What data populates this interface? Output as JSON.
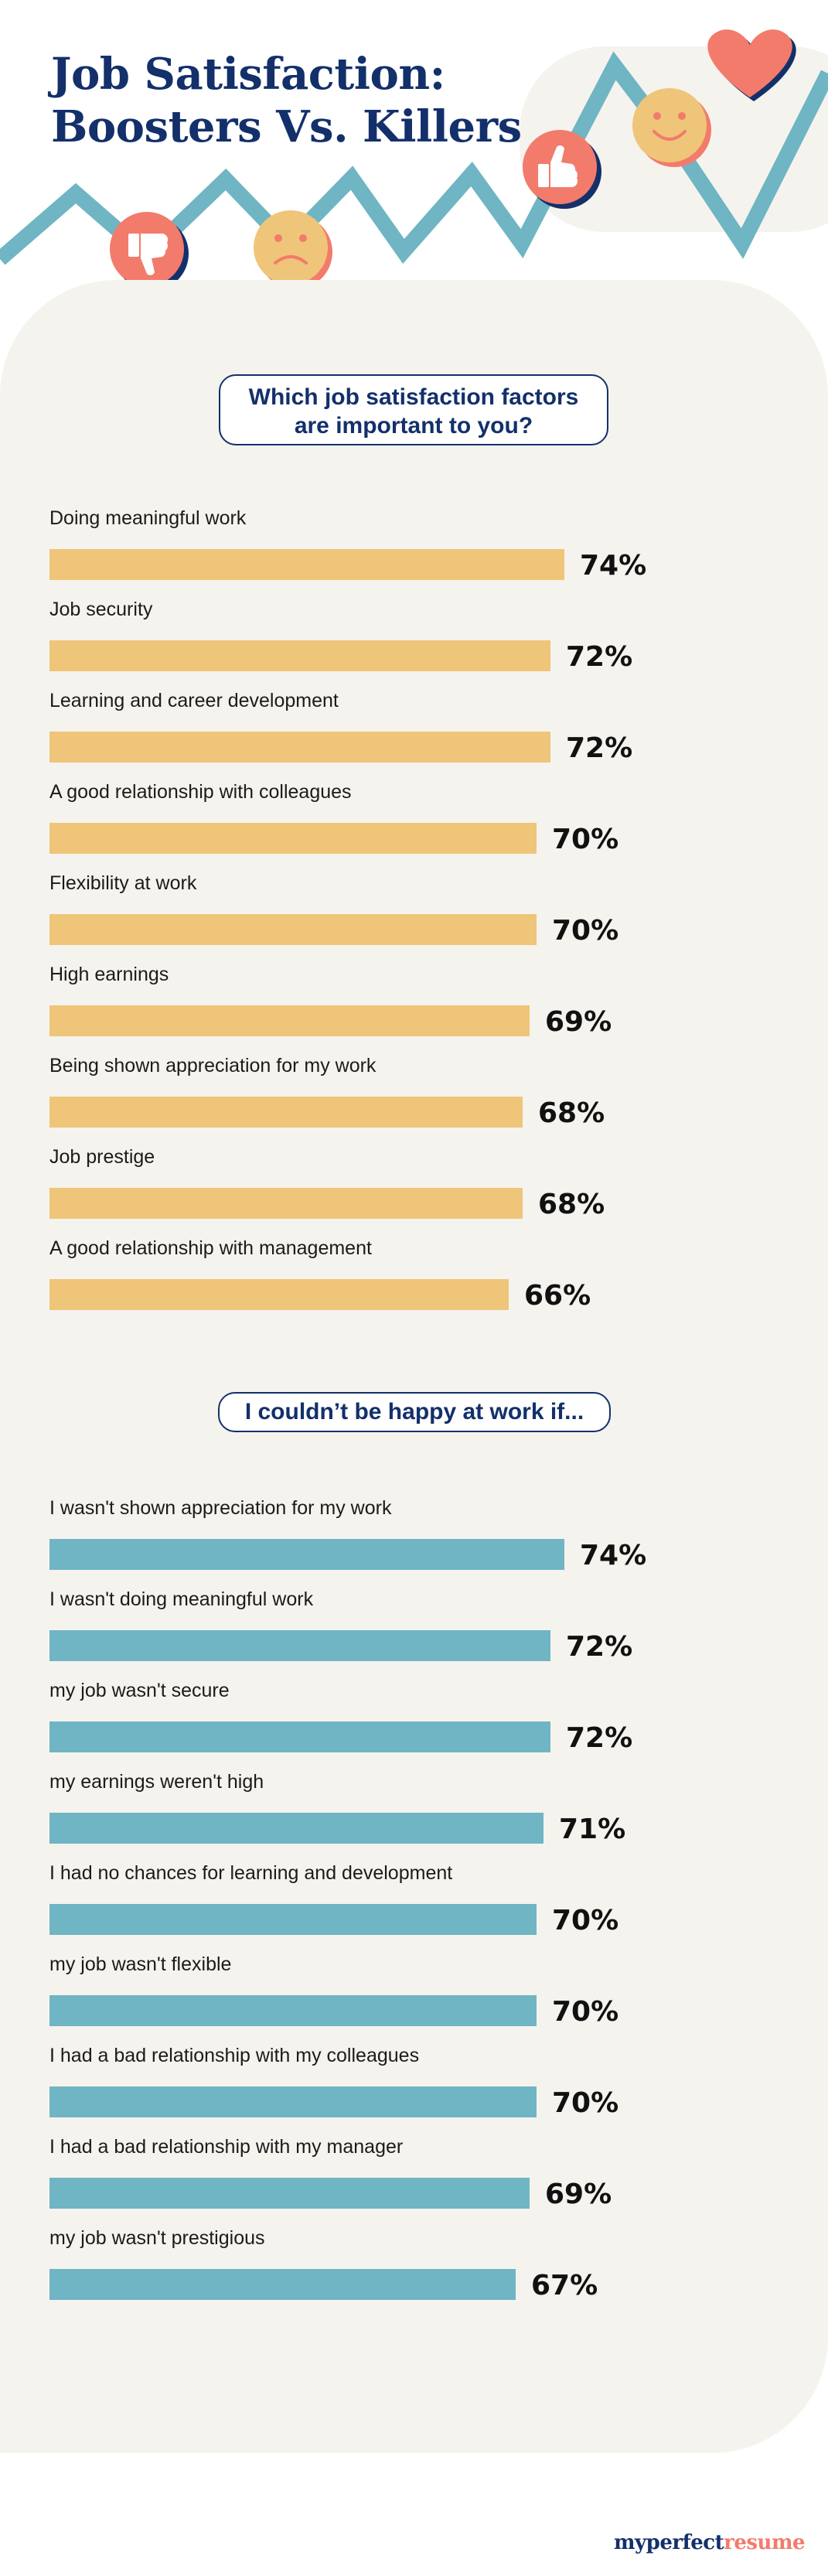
{
  "header": {
    "title_line1": "Job Satisfaction:",
    "title_line2": "Boosters Vs. Killers"
  },
  "colors": {
    "navy": "#13306b",
    "boosters_bar": "#efc579",
    "killers_bar": "#6fb5c3",
    "coral": "#f27b6b",
    "panel_bg": "#f5f3ee"
  },
  "sections": {
    "boosters_question_line1": "Which job satisfaction factors",
    "boosters_question_line2": "are important to you?",
    "killers_question": "I couldn’t be happy at work if..."
  },
  "chart_data": [
    {
      "type": "bar",
      "orientation": "horizontal",
      "title": "Which job satisfaction factors are important to you?",
      "categories": [
        "Doing meaningful work",
        "Job security",
        "Learning and career development",
        "A good relationship with colleagues",
        "Flexibility at work",
        "High earnings",
        "Being shown appreciation for my work",
        "Job prestige",
        "A good relationship with management"
      ],
      "values": [
        74,
        72,
        72,
        70,
        70,
        69,
        68,
        68,
        66
      ],
      "value_labels": [
        "74%",
        "72%",
        "72%",
        "70%",
        "70%",
        "69%",
        "68%",
        "68%",
        "66%"
      ],
      "xlim": [
        0,
        100
      ],
      "color": "#efc579",
      "grid": false
    },
    {
      "type": "bar",
      "orientation": "horizontal",
      "title": "I couldn’t be happy at work if...",
      "categories": [
        "I wasn't shown appreciation for my work",
        "I wasn't doing meaningful work",
        "my job wasn't secure",
        "my earnings weren't high",
        "I had no chances for learning and development",
        "my job wasn't flexible",
        "I had a bad relationship with my colleagues",
        "I had a bad relationship with my manager",
        "my job wasn't prestigious"
      ],
      "values": [
        74,
        72,
        72,
        71,
        70,
        70,
        70,
        69,
        67
      ],
      "value_labels": [
        "74%",
        "72%",
        "72%",
        "71%",
        "70%",
        "70%",
        "70%",
        "69%",
        "67%"
      ],
      "xlim": [
        0,
        100
      ],
      "color": "#6fb5c3",
      "grid": false
    }
  ],
  "footer": {
    "brand_part1": "myperfect",
    "brand_part2": "resume"
  }
}
